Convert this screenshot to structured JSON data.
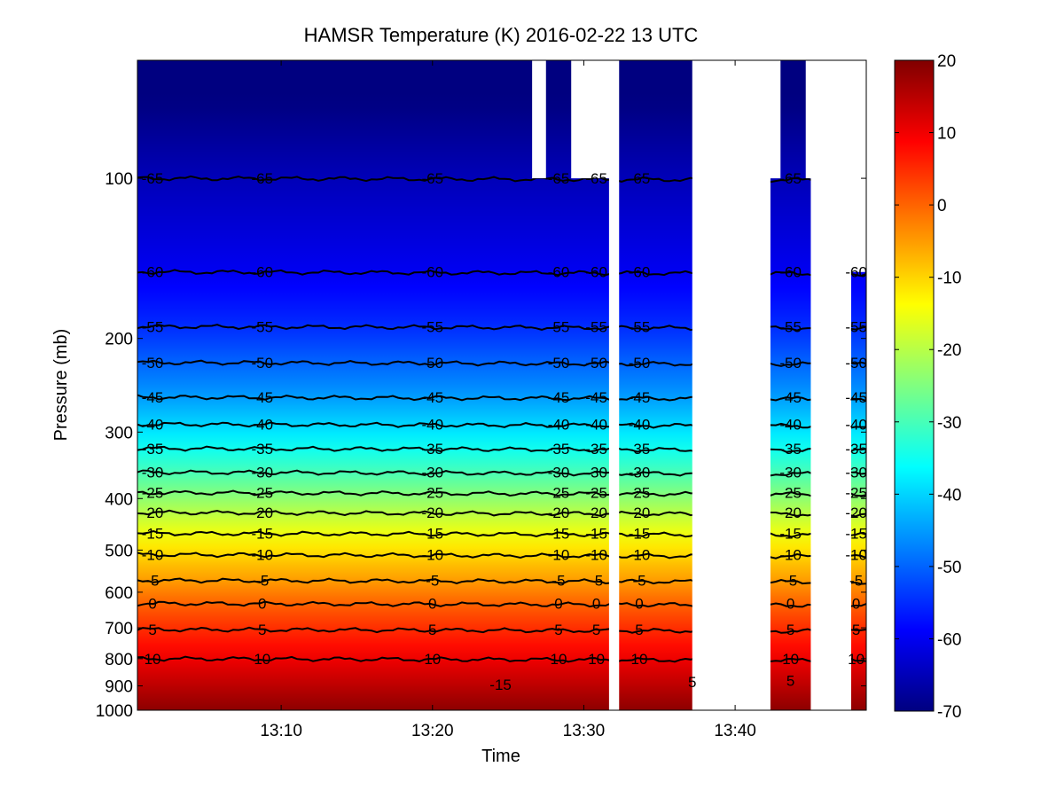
{
  "chart_data": {
    "type": "heatmap",
    "title": "HAMSR  Temperature (K) 2016-02-22 13 UTC",
    "xlabel": "Time",
    "ylabel": "Pressure (mb)",
    "x_range": [
      "13:00:30",
      "13:48:40"
    ],
    "x_ticks": [
      "13:10",
      "13:20",
      "13:30",
      "13:40"
    ],
    "y_scale": "log",
    "y_range": [
      1000,
      60
    ],
    "y_ticks": [
      "100",
      "200",
      "300",
      "400",
      "500",
      "600",
      "700",
      "800",
      "900",
      "1000"
    ],
    "colorbar": {
      "colormap": "jet",
      "range": [
        -70,
        20
      ],
      "ticks": [
        "20",
        "10",
        "0",
        "-10",
        "-20",
        "-30",
        "-40",
        "-50",
        "-60",
        "-70"
      ]
    },
    "contour_levels": [
      {
        "value": -65,
        "pressure": 100,
        "label": "-65"
      },
      {
        "value": -60,
        "pressure": 150,
        "label": "-60"
      },
      {
        "value": -55,
        "pressure": 190,
        "label": "-55"
      },
      {
        "value": -50,
        "pressure": 222,
        "label": "-50"
      },
      {
        "value": -45,
        "pressure": 258,
        "label": "-45"
      },
      {
        "value": -40,
        "pressure": 290,
        "label": "-40"
      },
      {
        "value": -35,
        "pressure": 322,
        "label": "-35"
      },
      {
        "value": -30,
        "pressure": 357,
        "label": "-30"
      },
      {
        "value": -25,
        "pressure": 390,
        "label": "-25"
      },
      {
        "value": -20,
        "pressure": 425,
        "label": "-20"
      },
      {
        "value": -15,
        "pressure": 465,
        "label": "-15"
      },
      {
        "value": -10,
        "pressure": 510,
        "label": "-10"
      },
      {
        "value": -5,
        "pressure": 570,
        "label": "-5"
      },
      {
        "value": 0,
        "pressure": 630,
        "label": "0"
      },
      {
        "value": 5,
        "pressure": 705,
        "label": "5"
      },
      {
        "value": 10,
        "pressure": 800,
        "label": "10"
      }
    ],
    "extra_contour_labels": [
      "-15",
      "5",
      "5"
    ],
    "data_coverage": [
      {
        "start": "13:00:30",
        "end": "13:26:35",
        "p_top": 60
      },
      {
        "start": "13:26:35",
        "end": "13:27:30",
        "p_top": 100
      },
      {
        "start": "13:27:30",
        "end": "13:29:10",
        "p_top": 60
      },
      {
        "start": "13:29:10",
        "end": "13:31:40",
        "p_top": 100
      },
      {
        "start": "13:32:20",
        "end": "13:37:10",
        "p_top": 60
      },
      {
        "start": "13:42:20",
        "end": "13:43:00",
        "p_top": 100
      },
      {
        "start": "13:43:00",
        "end": "13:44:40",
        "p_top": 60
      },
      {
        "start": "13:44:40",
        "end": "13:45:00",
        "p_top": 100
      },
      {
        "start": "13:47:40",
        "end": "13:48:40",
        "p_top": 150
      }
    ],
    "grid": false
  }
}
